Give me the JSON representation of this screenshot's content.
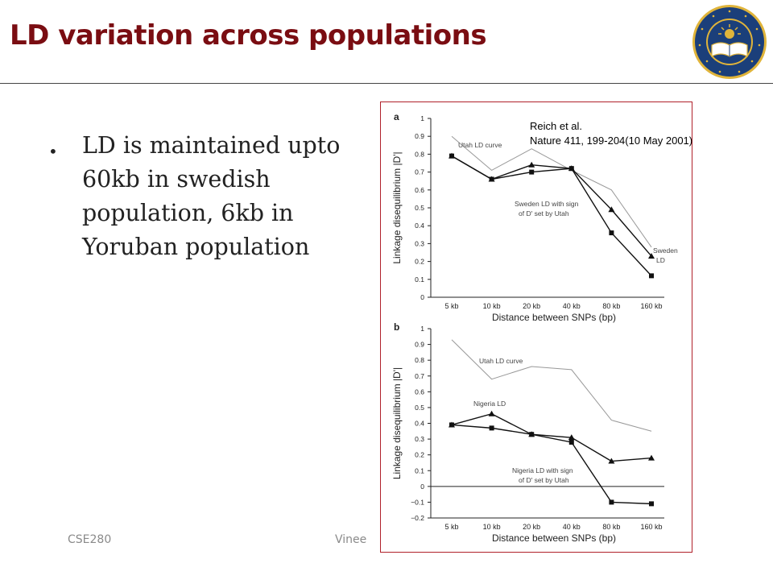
{
  "slide": {
    "title": "LD variation across populations",
    "bullet": "LD is maintained upto 60kb in swedish population, 6kb in Yoruban population",
    "footer_left": "CSE280",
    "footer_mid": "Vinee",
    "citation_line1": "Reich et al.",
    "citation_line2": "Nature 411, 199-204(10 May 2001)"
  },
  "logo": {
    "name": "uc-san-diego-seal",
    "lettering": "UNIVERSITY OF CALIFORNIA · SAN DIEGO · 1868",
    "colors": {
      "blue": "#1b3f7a",
      "gold": "#e0b43a"
    }
  },
  "colors": {
    "title": "#7a0d12",
    "frame": "#b0202a",
    "footer": "#8a8a8a"
  },
  "chart_data": [
    {
      "type": "line",
      "panel_label": "a",
      "categories": [
        "5 kb",
        "10 kb",
        "20 kb",
        "40 kb",
        "80 kb",
        "160 kb"
      ],
      "xlabel": "Distance between SNPs (bp)",
      "ylabel": "Linkage disequilibrium |D'|",
      "ylim": [
        0,
        1
      ],
      "yticks": [
        0,
        0.1,
        0.2,
        0.3,
        0.4,
        0.5,
        0.6,
        0.7,
        0.8,
        0.9,
        1
      ],
      "ytick_labels": [
        "0",
        "0.1",
        "0.2",
        "0.3",
        "0.4",
        "0.5",
        "0.6",
        "0.7",
        "0.8",
        "0.9",
        "1"
      ],
      "grid": false,
      "series": [
        {
          "name": "Utah LD curve",
          "values": [
            0.9,
            0.71,
            0.83,
            0.71,
            0.6,
            0.28
          ],
          "marker": "none",
          "color": "#999999"
        },
        {
          "name": "Sweden LD",
          "values": [
            0.79,
            0.66,
            0.74,
            0.72,
            0.49,
            0.23
          ],
          "marker": "triangle",
          "color": "#111111"
        },
        {
          "name": "Sweden LD with sign of D' set by Utah",
          "values": [
            0.79,
            0.66,
            0.7,
            0.72,
            0.36,
            0.12
          ],
          "marker": "square",
          "color": "#111111"
        }
      ],
      "annotations": [
        {
          "text": "Utah LD curve",
          "series": 0
        },
        {
          "text": "Sweden LD with sign",
          "series": 2
        },
        {
          "text": "of D' set by Utah",
          "series": 2
        },
        {
          "text": "Sweden",
          "series": 1
        },
        {
          "text": "LD",
          "series": 1
        }
      ]
    },
    {
      "type": "line",
      "panel_label": "b",
      "categories": [
        "5 kb",
        "10 kb",
        "20 kb",
        "40 kb",
        "80 kb",
        "160 kb"
      ],
      "xlabel": "Distance between SNPs (bp)",
      "ylabel": "Linkage disequilibrium |D'|",
      "ylim": [
        -0.2,
        1
      ],
      "yticks": [
        -0.2,
        -0.1,
        0,
        0.1,
        0.2,
        0.3,
        0.4,
        0.5,
        0.6,
        0.7,
        0.8,
        0.9,
        1
      ],
      "ytick_labels": [
        "−0.2",
        "−0.1",
        "0",
        "0.1",
        "0.2",
        "0.3",
        "0.4",
        "0.5",
        "0.6",
        "0.7",
        "0.8",
        "0.9",
        "1"
      ],
      "grid": false,
      "zero_line": true,
      "series": [
        {
          "name": "Utah LD curve",
          "values": [
            0.93,
            0.68,
            0.76,
            0.74,
            0.42,
            0.35
          ],
          "marker": "none",
          "color": "#999999"
        },
        {
          "name": "Nigeria LD",
          "values": [
            0.39,
            0.46,
            0.33,
            0.31,
            0.16,
            0.18
          ],
          "marker": "triangle",
          "color": "#111111"
        },
        {
          "name": "Nigeria LD with sign of D' set by Utah",
          "values": [
            0.39,
            0.37,
            0.33,
            0.28,
            -0.1,
            -0.11
          ],
          "marker": "square",
          "color": "#111111"
        }
      ],
      "annotations": [
        {
          "text": "Utah LD curve",
          "series": 0
        },
        {
          "text": "Nigeria LD",
          "series": 1
        },
        {
          "text": "Nigeria LD with sign",
          "series": 2
        },
        {
          "text": "of D' set by Utah",
          "series": 2
        }
      ]
    }
  ]
}
